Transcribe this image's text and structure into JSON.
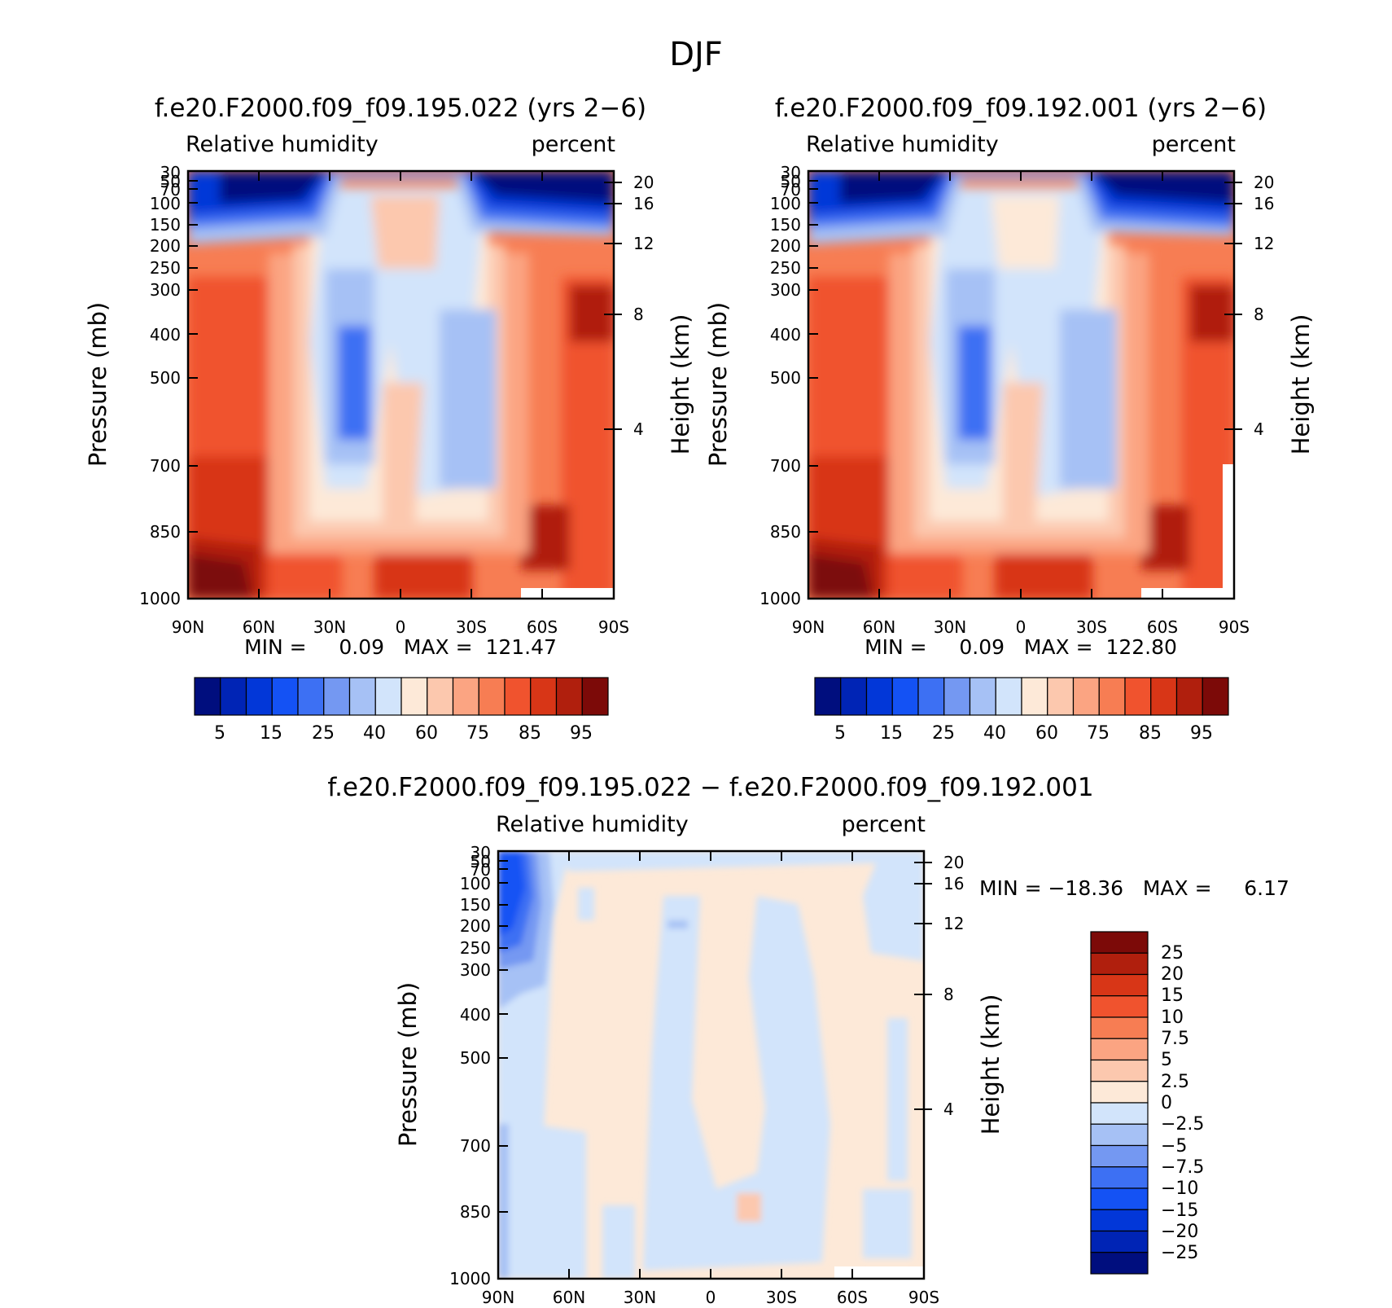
{
  "page_title": "DJF",
  "colors": {
    "full_scale": [
      "#000e7e",
      "#0024b5",
      "#0237d8",
      "#1452f4",
      "#3d70f3",
      "#7498f2",
      "#a6c1f5",
      "#d2e4fb",
      "#fde9d8",
      "#fcc8ae",
      "#fba482",
      "#f77d53",
      "#f0532e",
      "#d83617",
      "#b01f0d",
      "#7c0a08"
    ],
    "diff_scale": [
      "#000e7e",
      "#0024b5",
      "#0237d8",
      "#1452f4",
      "#3d70f3",
      "#7498f2",
      "#a6c1f5",
      "#d2e4fb",
      "#fde9d8",
      "#fcc8ae",
      "#fba482",
      "#f77d53",
      "#f0532e",
      "#d83617",
      "#b01f0d",
      "#7c0a08"
    ]
  },
  "chart_data": [
    {
      "type": "heatmap",
      "title": "f.e20.F2000.f09_f09.195.022 (yrs 2−6)",
      "left_string": "Relative humidity",
      "right_string": "percent",
      "ylabel": "Pressure (mb)",
      "ylabel_right": "Height (km)",
      "x_ticks": [
        "90N",
        "60N",
        "30N",
        "0",
        "30S",
        "60S",
        "90S"
      ],
      "y_ticks": [
        "30",
        "50",
        "70",
        "100",
        "150",
        "200",
        "250",
        "300",
        "400",
        "500",
        "700",
        "850",
        "1000"
      ],
      "y_right_ticks": [
        "20",
        "16",
        "12",
        "8",
        "4"
      ],
      "ylim": [
        1000,
        30
      ],
      "x_range": [
        90,
        -90
      ],
      "y_log_scale": true,
      "min_max": "MIN =     0.09   MAX =  121.47",
      "min": 0.09,
      "max": 121.47,
      "colorbar_ticks": [
        "5",
        "15",
        "25",
        "40",
        "60",
        "75",
        "85",
        "95"
      ],
      "colorbar_levels": [
        5,
        10,
        15,
        20,
        25,
        30,
        40,
        50,
        60,
        70,
        75,
        80,
        85,
        90,
        95
      ]
    },
    {
      "type": "heatmap",
      "title": "f.e20.F2000.f09_f09.192.001 (yrs 2−6)",
      "left_string": "Relative humidity",
      "right_string": "percent",
      "ylabel": "Pressure (mb)",
      "ylabel_right": "Height (km)",
      "x_ticks": [
        "90N",
        "60N",
        "30N",
        "0",
        "30S",
        "60S",
        "90S"
      ],
      "y_ticks": [
        "30",
        "50",
        "70",
        "100",
        "150",
        "200",
        "250",
        "300",
        "400",
        "500",
        "700",
        "850",
        "1000"
      ],
      "y_right_ticks": [
        "20",
        "16",
        "12",
        "8",
        "4"
      ],
      "ylim": [
        1000,
        30
      ],
      "x_range": [
        90,
        -90
      ],
      "y_log_scale": true,
      "min_max": "MIN =     0.09   MAX =  122.80",
      "min": 0.09,
      "max": 122.8,
      "colorbar_ticks": [
        "5",
        "15",
        "25",
        "40",
        "60",
        "75",
        "85",
        "95"
      ],
      "colorbar_levels": [
        5,
        10,
        15,
        20,
        25,
        30,
        40,
        50,
        60,
        70,
        75,
        80,
        85,
        90,
        95
      ]
    },
    {
      "type": "heatmap",
      "title": "f.e20.F2000.f09_f09.195.022 − f.e20.F2000.f09_f09.192.001",
      "left_string": "Relative humidity",
      "right_string": "percent",
      "ylabel": "Pressure (mb)",
      "ylabel_right": "Height (km)",
      "x_ticks": [
        "90N",
        "60N",
        "30N",
        "0",
        "30S",
        "60S",
        "90S"
      ],
      "y_ticks": [
        "30",
        "50",
        "70",
        "100",
        "150",
        "200",
        "250",
        "300",
        "400",
        "500",
        "700",
        "850",
        "1000"
      ],
      "y_right_ticks": [
        "20",
        "16",
        "12",
        "8",
        "4"
      ],
      "ylim": [
        1000,
        30
      ],
      "x_range": [
        90,
        -90
      ],
      "y_log_scale": true,
      "min_max": "MIN = −18.36   MAX =     6.17",
      "min": -18.36,
      "max": 6.17,
      "colorbar_ticks": [
        "25",
        "20",
        "15",
        "10",
        "7.5",
        "5",
        "2.5",
        "0",
        "−2.5",
        "−5",
        "−7.5",
        "−10",
        "−15",
        "−20",
        "−25"
      ],
      "colorbar_levels": [
        25,
        20,
        15,
        10,
        7.5,
        5,
        2.5,
        0,
        -2.5,
        -5,
        -7.5,
        -10,
        -15,
        -20,
        -25
      ]
    }
  ]
}
